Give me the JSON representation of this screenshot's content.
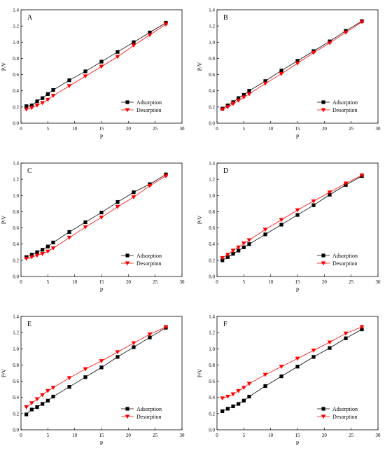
{
  "chart_data": [
    {
      "type": "line",
      "panel_label": "A",
      "xlabel": "P",
      "ylabel": "P/V",
      "xlim": [
        0,
        30
      ],
      "ylim": [
        0.0,
        1.4
      ],
      "xticks": [
        "0",
        "5",
        "10",
        "15",
        "20",
        "25",
        "30"
      ],
      "yticks": [
        "0.0",
        "0.2",
        "0.4",
        "0.6",
        "0.8",
        "1.0",
        "1.2",
        "1.4"
      ],
      "legend_position": "lower-right",
      "x": [
        1,
        2,
        3,
        4,
        5,
        6,
        9,
        12,
        15,
        18,
        21,
        24,
        27
      ],
      "series": [
        {
          "name": "Adsorption",
          "marker": "square",
          "color": "#000000",
          "values": [
            0.21,
            0.22,
            0.27,
            0.31,
            0.36,
            0.41,
            0.53,
            0.64,
            0.76,
            0.88,
            1.0,
            1.12,
            1.24
          ]
        },
        {
          "name": "Desorption",
          "marker": "triangle-down",
          "color": "#ff0000",
          "values": [
            0.17,
            0.19,
            0.22,
            0.25,
            0.29,
            0.34,
            0.46,
            0.58,
            0.7,
            0.82,
            0.96,
            1.09,
            1.22
          ]
        }
      ]
    },
    {
      "type": "line",
      "panel_label": "B",
      "xlabel": "P",
      "ylabel": "P/V",
      "xlim": [
        0,
        30
      ],
      "ylim": [
        0.0,
        1.4
      ],
      "xticks": [
        "0",
        "5",
        "10",
        "15",
        "20",
        "25",
        "30"
      ],
      "yticks": [
        "0.0",
        "0.2",
        "0.4",
        "0.6",
        "0.8",
        "1.0",
        "1.2",
        "1.4"
      ],
      "legend_position": "lower-right",
      "x": [
        1,
        2,
        3,
        4,
        5,
        6,
        9,
        12,
        15,
        18,
        21,
        24,
        27
      ],
      "series": [
        {
          "name": "Adsorption",
          "marker": "square",
          "color": "#000000",
          "values": [
            0.18,
            0.22,
            0.26,
            0.31,
            0.35,
            0.4,
            0.52,
            0.65,
            0.77,
            0.89,
            1.01,
            1.14,
            1.26
          ]
        },
        {
          "name": "Desorption",
          "marker": "triangle-down",
          "color": "#ff0000",
          "values": [
            0.17,
            0.2,
            0.24,
            0.28,
            0.32,
            0.36,
            0.49,
            0.61,
            0.74,
            0.87,
            0.99,
            1.12,
            1.25
          ]
        }
      ]
    },
    {
      "type": "line",
      "panel_label": "C",
      "xlabel": "P",
      "ylabel": "P/V",
      "xlim": [
        0,
        30
      ],
      "ylim": [
        0.0,
        1.4
      ],
      "xticks": [
        "0",
        "5",
        "10",
        "15",
        "20",
        "25",
        "30"
      ],
      "yticks": [
        "0.0",
        "0.2",
        "0.4",
        "0.6",
        "0.8",
        "1.0",
        "1.2",
        "1.4"
      ],
      "legend_position": "lower-right",
      "x": [
        1,
        2,
        3,
        4,
        5,
        6,
        9,
        12,
        15,
        18,
        21,
        24,
        27
      ],
      "series": [
        {
          "name": "Adsorption",
          "marker": "square",
          "color": "#000000",
          "values": [
            0.24,
            0.27,
            0.3,
            0.33,
            0.37,
            0.42,
            0.55,
            0.67,
            0.79,
            0.92,
            1.04,
            1.14,
            1.26
          ]
        },
        {
          "name": "Desorption",
          "marker": "triangle-down",
          "color": "#ff0000",
          "values": [
            0.22,
            0.24,
            0.26,
            0.28,
            0.31,
            0.35,
            0.48,
            0.61,
            0.73,
            0.86,
            0.98,
            1.12,
            1.24
          ]
        }
      ]
    },
    {
      "type": "line",
      "panel_label": "D",
      "xlabel": "P",
      "ylabel": "P/V",
      "xlim": [
        0,
        30
      ],
      "ylim": [
        0.0,
        1.4
      ],
      "xticks": [
        "0",
        "5",
        "10",
        "15",
        "20",
        "25",
        "30"
      ],
      "yticks": [
        "0.0",
        "0.2",
        "0.4",
        "0.6",
        "0.8",
        "1.0",
        "1.2",
        "1.4"
      ],
      "legend_position": "lower-right",
      "x": [
        1,
        2,
        3,
        4,
        5,
        6,
        9,
        12,
        15,
        18,
        21,
        24,
        27
      ],
      "series": [
        {
          "name": "Adsorption",
          "marker": "square",
          "color": "#000000",
          "values": [
            0.2,
            0.24,
            0.28,
            0.32,
            0.36,
            0.4,
            0.52,
            0.64,
            0.76,
            0.88,
            1.01,
            1.13,
            1.24
          ]
        },
        {
          "name": "Desorption",
          "marker": "triangle-down",
          "color": "#ff0000",
          "values": [
            0.23,
            0.27,
            0.32,
            0.36,
            0.41,
            0.45,
            0.58,
            0.7,
            0.82,
            0.93,
            1.04,
            1.15,
            1.25
          ]
        }
      ]
    },
    {
      "type": "line",
      "panel_label": "E",
      "xlabel": "P",
      "ylabel": "P/V",
      "xlim": [
        0,
        30
      ],
      "ylim": [
        0.0,
        1.4
      ],
      "xticks": [
        "0",
        "5",
        "10",
        "15",
        "20",
        "25",
        "30"
      ],
      "yticks": [
        "0.0",
        "0.2",
        "0.4",
        "0.6",
        "0.8",
        "1.0",
        "1.2",
        "1.4"
      ],
      "legend_position": "lower-right",
      "x": [
        1,
        2,
        3,
        4,
        5,
        6,
        9,
        12,
        15,
        18,
        21,
        24,
        27
      ],
      "series": [
        {
          "name": "Adsorption",
          "marker": "square",
          "color": "#000000",
          "values": [
            0.19,
            0.25,
            0.28,
            0.32,
            0.36,
            0.41,
            0.53,
            0.65,
            0.77,
            0.9,
            1.02,
            1.14,
            1.26
          ]
        },
        {
          "name": "Desorption",
          "marker": "triangle-down",
          "color": "#ff0000",
          "values": [
            0.28,
            0.33,
            0.38,
            0.43,
            0.48,
            0.52,
            0.64,
            0.75,
            0.85,
            0.96,
            1.07,
            1.18,
            1.27
          ]
        }
      ]
    },
    {
      "type": "line",
      "panel_label": "F",
      "xlabel": "P",
      "ylabel": "P/V",
      "xlim": [
        0,
        30
      ],
      "ylim": [
        0.0,
        1.4
      ],
      "xticks": [
        "0",
        "5",
        "10",
        "15",
        "20",
        "25",
        "30"
      ],
      "yticks": [
        "0.0",
        "0.2",
        "0.4",
        "0.6",
        "0.8",
        "1.0",
        "1.2",
        "1.4"
      ],
      "legend_position": "lower-right",
      "x": [
        1,
        2,
        3,
        4,
        5,
        6,
        9,
        12,
        15,
        18,
        21,
        24,
        27
      ],
      "series": [
        {
          "name": "Adsorption",
          "marker": "square",
          "color": "#000000",
          "values": [
            0.23,
            0.26,
            0.29,
            0.32,
            0.36,
            0.41,
            0.54,
            0.66,
            0.78,
            0.9,
            1.01,
            1.13,
            1.24
          ]
        },
        {
          "name": "Desorption",
          "marker": "triangle-down",
          "color": "#ff0000",
          "values": [
            0.39,
            0.41,
            0.44,
            0.48,
            0.52,
            0.57,
            0.68,
            0.78,
            0.88,
            0.98,
            1.08,
            1.19,
            1.27
          ]
        }
      ]
    }
  ]
}
